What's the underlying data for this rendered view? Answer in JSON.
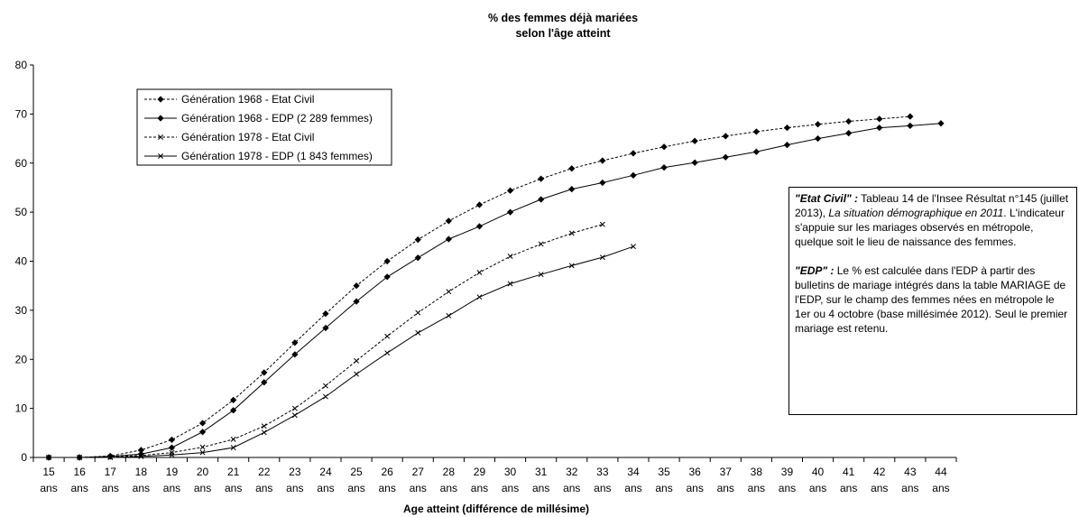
{
  "chart_data": {
    "type": "line",
    "title": "% des femmes déjà mariées",
    "subtitle": "selon l'âge atteint",
    "xlabel": "Age atteint (différence de millésime)",
    "ylabel": "",
    "categories": [
      "15 ans",
      "16 ans",
      "17 ans",
      "18 ans",
      "19 ans",
      "20 ans",
      "21 ans",
      "22 ans",
      "23 ans",
      "24 ans",
      "25 ans",
      "26 ans",
      "27 ans",
      "28 ans",
      "29 ans",
      "30 ans",
      "31 ans",
      "32 ans",
      "33 ans",
      "34 ans",
      "35 ans",
      "36 ans",
      "37 ans",
      "38 ans",
      "39 ans",
      "40 ans",
      "41 ans",
      "42 ans",
      "43 ans",
      "44 ans"
    ],
    "x_ticks": [
      "15",
      "16",
      "17",
      "18",
      "19",
      "20",
      "21",
      "22",
      "23",
      "24",
      "25",
      "26",
      "27",
      "28",
      "29",
      "30",
      "31",
      "32",
      "33",
      "34",
      "35",
      "36",
      "37",
      "38",
      "39",
      "40",
      "41",
      "42",
      "43",
      "44"
    ],
    "x_tick_unit": "ans",
    "ylim": [
      0,
      80
    ],
    "y_ticks": [
      0,
      10,
      20,
      30,
      40,
      50,
      60,
      70,
      80
    ],
    "grid": false,
    "legend_position": "top-left",
    "series": [
      {
        "name": "Génération 1968 - Etat Civil",
        "style": "dotted",
        "marker": "diamond",
        "color": "#000000",
        "values": [
          0,
          0,
          0.3,
          1.5,
          3.6,
          7.0,
          11.7,
          17.3,
          23.4,
          29.3,
          35.0,
          40.0,
          44.4,
          48.2,
          51.5,
          54.4,
          56.8,
          58.9,
          60.5,
          62.0,
          63.3,
          64.5,
          65.5,
          66.4,
          67.2,
          67.9,
          68.5,
          69.0,
          69.5,
          null
        ]
      },
      {
        "name": "Génération 1968 - EDP (2 289 femmes)",
        "style": "solid",
        "marker": "diamond",
        "color": "#000000",
        "values": [
          0,
          0,
          0.2,
          0.7,
          2.0,
          5.2,
          9.6,
          15.3,
          21.0,
          26.4,
          31.8,
          36.8,
          40.7,
          44.5,
          47.1,
          50.0,
          52.6,
          54.7,
          56.0,
          57.5,
          59.1,
          60.1,
          61.2,
          62.3,
          63.7,
          65.0,
          66.1,
          67.2,
          67.6,
          68.1
        ]
      },
      {
        "name": "Génération 1978 - Etat Civil",
        "style": "dotted",
        "marker": "x",
        "color": "#000000",
        "values": [
          0,
          0,
          0.1,
          0.4,
          1.0,
          2.1,
          3.7,
          6.4,
          10.0,
          14.6,
          19.7,
          24.7,
          29.5,
          33.8,
          37.7,
          41.0,
          43.5,
          45.7,
          47.5,
          null,
          null,
          null,
          null,
          null,
          null,
          null,
          null,
          null,
          null,
          null
        ]
      },
      {
        "name": "Génération 1978 - EDP (1 843 femmes)",
        "style": "solid",
        "marker": "x",
        "color": "#000000",
        "values": [
          0,
          0,
          0,
          0.2,
          0.5,
          1.0,
          2.0,
          5.1,
          8.6,
          12.4,
          17.0,
          21.3,
          25.4,
          28.9,
          32.7,
          35.4,
          37.3,
          39.1,
          40.8,
          43.0,
          null,
          null,
          null,
          null,
          null,
          null,
          null,
          null,
          null,
          null
        ]
      }
    ]
  },
  "note": {
    "etat_civil_key": "\"Etat Civil\" :",
    "etat_civil_text1": " Tableau 14 de l'Insee Résultat n°145 (juillet 2013), ",
    "etat_civil_title": "La situation démographique en 2011",
    "etat_civil_text2": ". L'indicateur s'appuie sur les mariages observés en métropole, quelque soit le lieu de naissance des femmes.",
    "edp_key": "\"EDP\" :",
    "edp_text": " Le % est calculée dans l'EDP à partir des bulletins de mariage intégrés dans la table MARIAGE de l'EDP, sur le champ des femmes nées en métropole le 1er ou 4 octobre (base millésimée 2012). Seul le premier mariage est retenu."
  }
}
